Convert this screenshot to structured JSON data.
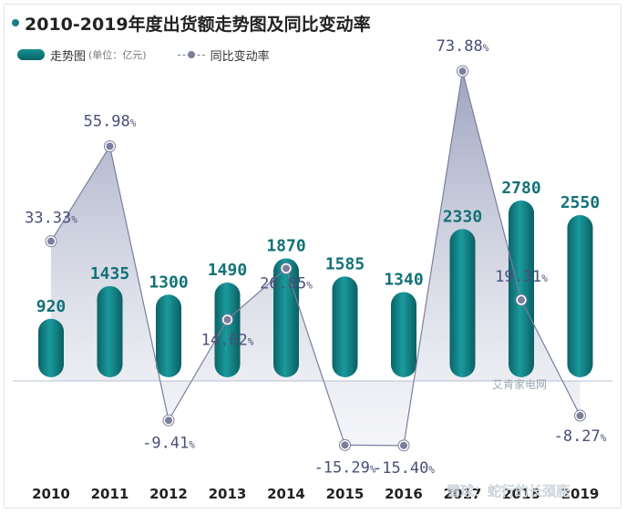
{
  "chart_data": {
    "type": "bar+line",
    "title": "2010-2019年度出货额走势图及同比变动率",
    "categories": [
      "2010",
      "2011",
      "2012",
      "2013",
      "2014",
      "2015",
      "2016",
      "2017",
      "2018",
      "2019"
    ],
    "series": [
      {
        "name": "走势图",
        "unit": "(单位：亿元)",
        "type": "bar",
        "values": [
          920,
          1435,
          1300,
          1490,
          1870,
          1585,
          1340,
          2330,
          2780,
          2550
        ],
        "labels": [
          "920",
          "1435",
          "1300",
          "1490",
          "1870",
          "1585",
          "1340",
          "2330",
          "2780",
          "2550"
        ]
      },
      {
        "name": "同比变动率",
        "type": "line",
        "values": [
          33.33,
          55.98,
          -9.41,
          14.62,
          26.85,
          -15.29,
          -15.4,
          73.88,
          19.31,
          -8.27
        ],
        "labels": [
          "33.33",
          "55.98",
          "-9.41",
          "14.62",
          "26.85",
          "-15.29",
          "-15.40",
          "73.88",
          "19.31",
          "-8.27"
        ],
        "label_suffix": "%"
      }
    ],
    "legend_position": "top-left",
    "grid": false,
    "colors": {
      "bar": "#11787c",
      "bar_light": "#1a9a9c",
      "line": "#7a7f9c",
      "area": "#8c93b4"
    }
  },
  "watermarks": [
    "艾肯家电网",
    "雪球：蛇行的长颈鹿"
  ]
}
